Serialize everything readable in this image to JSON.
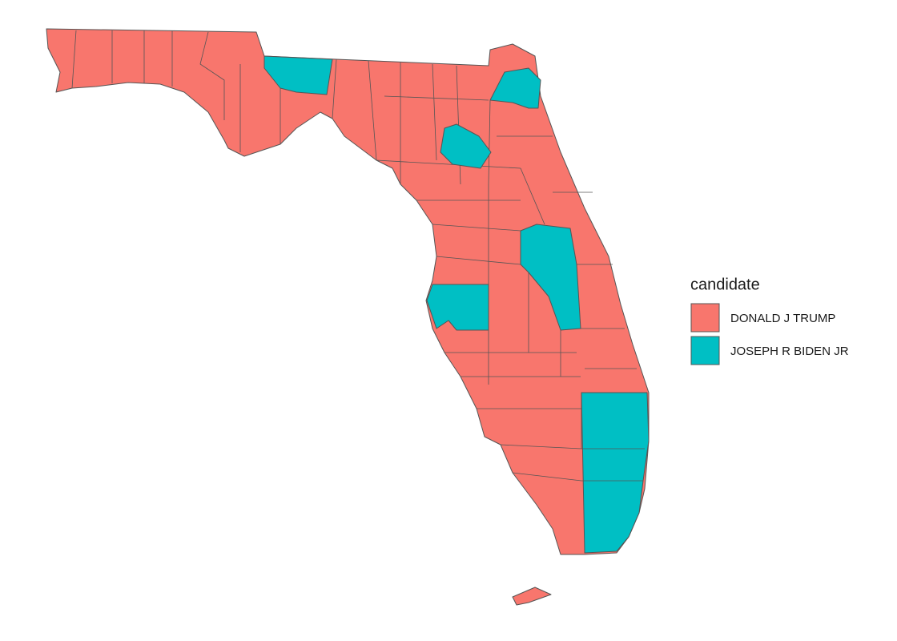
{
  "legend": {
    "title": "candidate",
    "items": [
      {
        "label": "DONALD J TRUMP",
        "color": "#F8766D"
      },
      {
        "label": "JOSEPH R BIDEN JR",
        "color": "#00BFC4"
      }
    ]
  }
}
